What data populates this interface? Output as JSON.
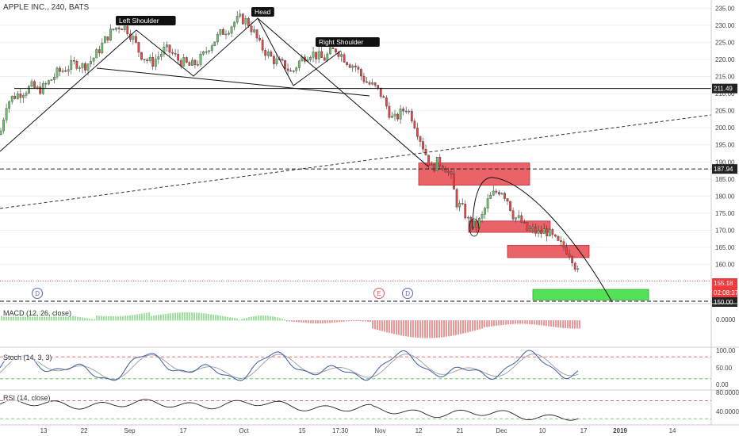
{
  "header": {
    "symbol_title": "APPLE INC., 240, BATS"
  },
  "colors": {
    "up": "#6cc26a",
    "down": "#e04848",
    "zone_red": "#e8474e",
    "zone_green": "#4cdf4c",
    "grid": "#eef0f3",
    "axis_text": "#444444",
    "macd_up": "#5fcf5f",
    "macd_down": "#e05050",
    "stoch_k": "#3d5aa8",
    "stoch_d": "#9a9a9a",
    "rsi_line": "#222222",
    "price_badge_red": "#ef3b3b",
    "price_badge_black": "#222222"
  },
  "indicators": {
    "macd_label": "MACD (12, 26, close)",
    "stoch_label": "Stoch (14, 3, 3)",
    "rsi_label": "RSI (14, close)"
  },
  "annotations": {
    "left_shoulder": "Left Shoulder",
    "head": "Head",
    "right_shoulder": "Right Shoulder"
  },
  "events": [
    {
      "label": "D",
      "color": "#5a6ab4"
    },
    {
      "label": "E",
      "color": "#e05a5a"
    },
    {
      "label": "D",
      "color": "#5a6ab4"
    }
  ],
  "price_badges": {
    "level_211": "211.49",
    "level_188": "187.94",
    "last_price": "155.18",
    "countdown": "02:08:37",
    "bottom_level": "150.00"
  },
  "chart_data": {
    "type": "candlestick",
    "title": "APPLE INC., 240, BATS",
    "x_ticks": [
      "13",
      "22",
      "Sep",
      "17",
      "Oct",
      "15",
      "17:30",
      "Nov",
      "12",
      "21",
      "Dec",
      "10",
      "17",
      "2019",
      "14"
    ],
    "y_ticks": [
      "150.00",
      "155.00",
      "160.00",
      "165.00",
      "170.00",
      "175.00",
      "180.00",
      "185.00",
      "190.00",
      "195.00",
      "200.00",
      "205.00",
      "210.00",
      "215.00",
      "220.00",
      "225.00",
      "230.00",
      "235.00"
    ],
    "ylim": [
      149,
      236
    ],
    "close_path": [
      [
        0,
        198
      ],
      [
        8,
        207
      ],
      [
        16,
        209
      ],
      [
        24,
        210
      ],
      [
        32,
        211
      ],
      [
        40,
        212
      ],
      [
        48,
        211
      ],
      [
        56,
        212
      ],
      [
        64,
        214
      ],
      [
        72,
        216
      ],
      [
        80,
        217
      ],
      [
        88,
        218
      ],
      [
        96,
        219
      ],
      [
        104,
        218
      ],
      [
        112,
        219
      ],
      [
        120,
        221
      ],
      [
        128,
        224
      ],
      [
        136,
        227
      ],
      [
        144,
        229
      ],
      [
        152,
        230
      ],
      [
        160,
        229
      ],
      [
        168,
        226
      ],
      [
        176,
        222
      ],
      [
        184,
        220
      ],
      [
        192,
        219
      ],
      [
        200,
        221
      ],
      [
        208,
        223
      ],
      [
        216,
        222
      ],
      [
        224,
        220
      ],
      [
        232,
        219
      ],
      [
        240,
        218
      ],
      [
        248,
        219
      ],
      [
        256,
        221
      ],
      [
        264,
        224
      ],
      [
        272,
        226
      ],
      [
        280,
        228
      ],
      [
        288,
        229
      ],
      [
        296,
        231
      ],
      [
        304,
        232
      ],
      [
        312,
        231
      ],
      [
        320,
        228
      ],
      [
        328,
        224
      ],
      [
        336,
        222
      ],
      [
        344,
        220
      ],
      [
        352,
        219
      ],
      [
        360,
        218
      ],
      [
        368,
        216
      ],
      [
        376,
        219
      ],
      [
        384,
        221
      ],
      [
        392,
        222
      ],
      [
        400,
        221
      ],
      [
        408,
        220
      ],
      [
        416,
        222
      ],
      [
        424,
        223
      ],
      [
        432,
        221
      ],
      [
        440,
        219
      ],
      [
        448,
        218
      ],
      [
        456,
        215
      ],
      [
        464,
        213
      ],
      [
        472,
        212
      ],
      [
        480,
        210
      ],
      [
        488,
        206
      ],
      [
        496,
        202
      ],
      [
        504,
        204
      ],
      [
        512,
        206
      ],
      [
        520,
        203
      ],
      [
        528,
        198
      ],
      [
        536,
        193
      ],
      [
        544,
        188
      ],
      [
        552,
        190
      ],
      [
        560,
        189
      ],
      [
        568,
        186
      ],
      [
        576,
        178
      ],
      [
        584,
        176
      ],
      [
        592,
        172
      ],
      [
        600,
        171
      ],
      [
        608,
        174
      ],
      [
        616,
        179
      ],
      [
        624,
        181
      ],
      [
        632,
        182
      ],
      [
        640,
        179
      ],
      [
        648,
        174
      ],
      [
        656,
        173
      ],
      [
        664,
        170
      ],
      [
        672,
        170
      ],
      [
        680,
        169
      ],
      [
        688,
        170
      ],
      [
        696,
        168
      ],
      [
        704,
        166
      ],
      [
        712,
        165
      ],
      [
        720,
        163
      ],
      [
        728,
        158
      ],
      [
        732,
        155.2
      ]
    ],
    "lines": {
      "neckline": [
        [
          18,
          211.49
        ],
        [
          932,
          211.49
        ]
      ],
      "resistance": [
        [
          0,
          187.94
        ],
        [
          932,
          187.94
        ]
      ],
      "support_price": 155.18,
      "bottom_price": 150.0
    },
    "zones": [
      {
        "x1": 528,
        "x2": 668,
        "y1": 189.7,
        "y2": 183.2,
        "kind": "red"
      },
      {
        "x1": 591,
        "x2": 694,
        "y1": 172.7,
        "y2": 169.4,
        "kind": "red"
      },
      {
        "x1": 640,
        "x2": 743,
        "y1": 165.6,
        "y2": 162.0,
        "kind": "red"
      },
      {
        "x1": 672,
        "x2": 818,
        "y1": 152.7,
        "y2": 149.6,
        "kind": "green"
      }
    ]
  }
}
